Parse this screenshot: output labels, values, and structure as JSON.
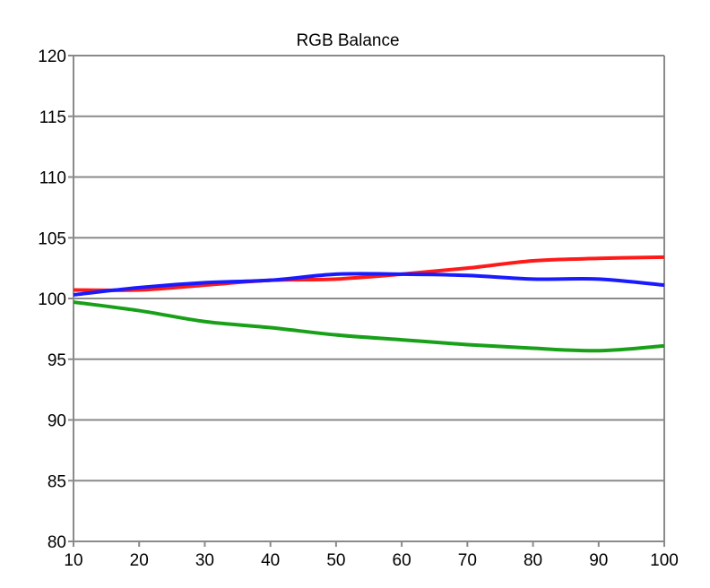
{
  "chart_data": {
    "type": "line",
    "title": "RGB Balance",
    "xlabel": "",
    "ylabel": "",
    "x": [
      10,
      20,
      30,
      40,
      50,
      60,
      70,
      80,
      90,
      100
    ],
    "xlim": [
      10,
      100
    ],
    "ylim": [
      80,
      120
    ],
    "x_ticks": [
      10,
      20,
      30,
      40,
      50,
      60,
      70,
      80,
      90,
      100
    ],
    "y_ticks": [
      80,
      85,
      90,
      95,
      100,
      105,
      110,
      115,
      120
    ],
    "grid": "horizontal",
    "legend": "none",
    "series": [
      {
        "color": "#ff1a1a",
        "values": [
          100.7,
          100.7,
          101.1,
          101.5,
          101.6,
          102.0,
          102.5,
          103.1,
          103.3,
          103.4
        ]
      },
      {
        "color": "#1a1aff",
        "values": [
          100.3,
          100.9,
          101.3,
          101.5,
          102.0,
          102.0,
          101.9,
          101.6,
          101.6,
          101.1
        ]
      },
      {
        "color": "#19a019",
        "values": [
          99.7,
          99.0,
          98.1,
          97.6,
          97.0,
          96.6,
          96.2,
          95.9,
          95.7,
          96.1
        ]
      }
    ]
  }
}
